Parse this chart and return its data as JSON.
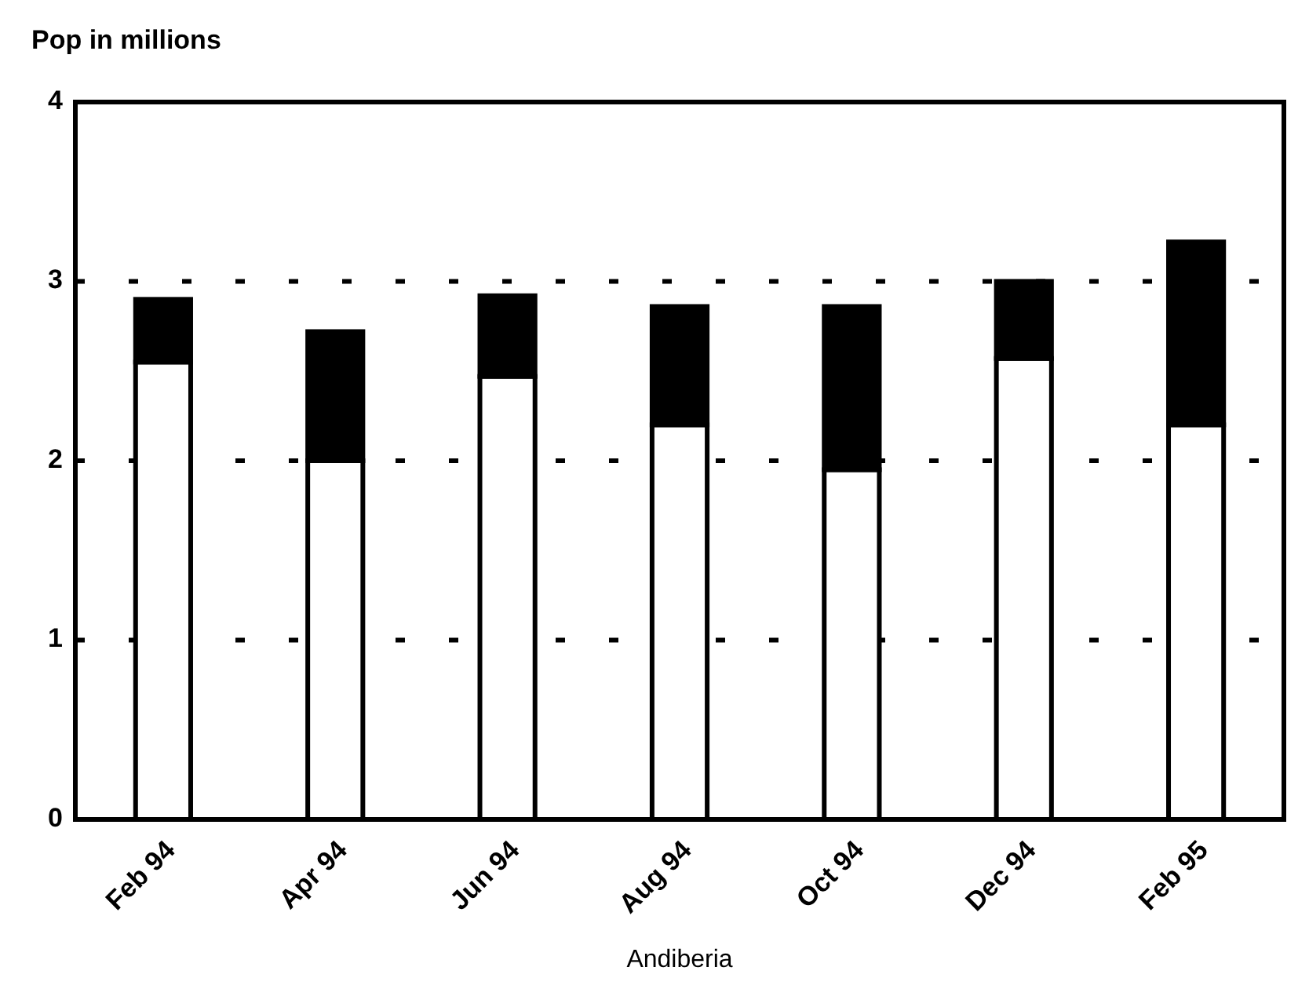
{
  "chart_data": {
    "type": "bar",
    "ylabel": "Pop in millions",
    "xlabel": "Andiberia",
    "categories": [
      "Feb 94",
      "Apr 94",
      "Jun 94",
      "Aug 94",
      "Oct 94",
      "Dec 94",
      "Feb 95"
    ],
    "stacked": true,
    "series": [
      {
        "color": "#ffffff",
        "values": [
          2.55,
          2.0,
          2.47,
          2.2,
          1.95,
          2.57,
          2.2
        ]
      },
      {
        "color": "#000000",
        "values": [
          0.35,
          0.72,
          0.45,
          0.66,
          0.91,
          0.43,
          1.02
        ]
      }
    ],
    "ylim": [
      0,
      4
    ],
    "yticks": [
      0,
      1,
      2,
      3,
      4
    ],
    "grid": "y",
    "line_style": "dotted"
  }
}
